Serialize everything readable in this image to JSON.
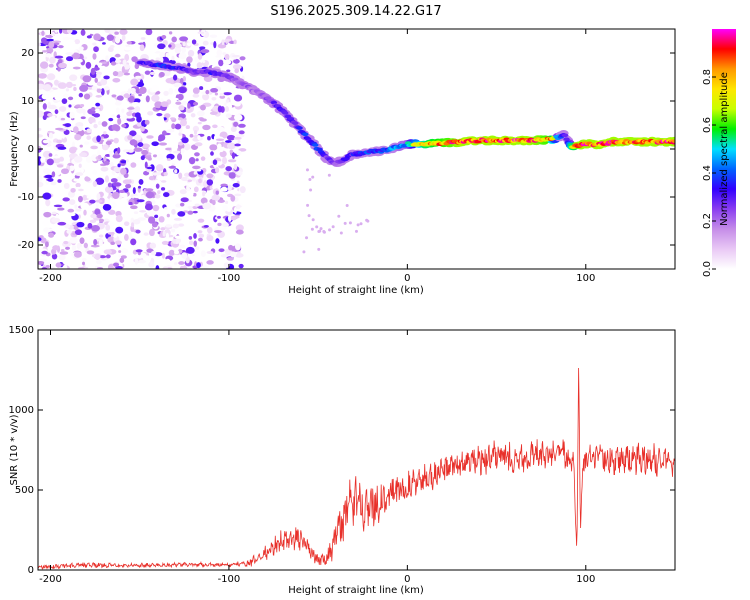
{
  "title": "S196.2025.309.14.22.G17",
  "chart_data": [
    {
      "type": "heatmap",
      "title": "S196.2025.309.14.22.G17",
      "xlabel": "Height of straight line (km)",
      "ylabel": "Frequency (Hz)",
      "xlim": [
        -207,
        150
      ],
      "ylim": [
        -25,
        25
      ],
      "x_ticks": [
        -200,
        -100,
        0,
        100
      ],
      "y_ticks": [
        20,
        10,
        0,
        -10,
        -20
      ],
      "x_tick_labels": [
        "-200",
        "-100",
        "0",
        "100"
      ],
      "y_tick_labels": [
        "20",
        "10",
        "0",
        "-10",
        "-20"
      ],
      "colorbar": {
        "label": "Normalized spectral amplitude",
        "range": [
          0,
          1
        ],
        "ticks": [
          0.0,
          0.2,
          0.4,
          0.6,
          0.8
        ],
        "tick_labels": [
          "0.0",
          "0.2",
          "0.4",
          "0.6",
          "0.8"
        ],
        "colors": [
          "#ffffff",
          "#e9c8f5",
          "#c58de8",
          "#8a3ef0",
          "#3200ff",
          "#0064ff",
          "#00e0ff",
          "#00f000",
          "#c8ff00",
          "#ffe600",
          "#ff9800",
          "#ff0000",
          "#ff00ff"
        ]
      },
      "ridge": {
        "x": [
          -150,
          -140,
          -130,
          -120,
          -110,
          -100,
          -95,
          -90,
          -85,
          -80,
          -75,
          -70,
          -65,
          -60,
          -55,
          -50,
          -45,
          -40,
          -35,
          -30,
          -25,
          -20,
          -15,
          -10,
          -5,
          0,
          5,
          10,
          20,
          30,
          40,
          50,
          60,
          70,
          80,
          85,
          88,
          90,
          92,
          95,
          100,
          105,
          110,
          115,
          120,
          130,
          140,
          150
        ],
        "y": [
          18,
          17.5,
          17,
          16,
          16,
          15,
          14,
          13,
          12,
          11,
          9.5,
          8,
          6,
          4,
          2,
          0,
          -2,
          -3,
          -2,
          -1,
          -1,
          -0.5,
          -0.5,
          0,
          0.5,
          1,
          1,
          1,
          1.2,
          1.5,
          1.8,
          1.8,
          1.8,
          1.8,
          2,
          2.5,
          3,
          1.5,
          0.5,
          0.8,
          1,
          1,
          1,
          1.5,
          1.5,
          1.5,
          1.5,
          1.5
        ],
        "amplitude": [
          0.3,
          0.4,
          0.35,
          0.3,
          0.35,
          0.3,
          0.2,
          0.25,
          0.2,
          0.25,
          0.3,
          0.35,
          0.3,
          0.35,
          0.4,
          0.4,
          0.3,
          0.25,
          0.35,
          0.35,
          0.4,
          0.4,
          0.4,
          0.45,
          0.5,
          0.5,
          0.75,
          0.85,
          0.9,
          0.95,
          0.95,
          0.95,
          0.95,
          0.95,
          0.9,
          0.5,
          0.3,
          0.4,
          0.8,
          0.95,
          0.95,
          0.95,
          0.95,
          0.95,
          0.95,
          0.95,
          0.95,
          0.95
        ]
      }
    },
    {
      "type": "line",
      "xlabel": "Height of straight line (km)",
      "ylabel": "SNR (10 * v/v)",
      "xlim": [
        -207,
        150
      ],
      "ylim": [
        0,
        1500
      ],
      "x_ticks": [
        -200,
        -100,
        0,
        100
      ],
      "y_ticks": [
        0,
        500,
        1000,
        1500
      ],
      "x_tick_labels": [
        "-200",
        "-100",
        "0",
        "100"
      ],
      "y_tick_labels": [
        "0",
        "500",
        "1000",
        "1500"
      ],
      "color": "#e8302a",
      "series": [
        {
          "name": "SNR",
          "x": [
            -207,
            -195,
            -180,
            -160,
            -140,
            -120,
            -100,
            -90,
            -85,
            -80,
            -75,
            -70,
            -60,
            -55,
            -50,
            -45,
            -40,
            -35,
            -30,
            -25,
            -20,
            -15,
            -10,
            -5,
            0,
            5,
            10,
            20,
            30,
            40,
            50,
            60,
            70,
            80,
            90,
            93,
            95,
            96,
            97,
            98,
            100,
            110,
            120,
            130,
            140,
            150
          ],
          "y": [
            20,
            25,
            30,
            30,
            30,
            35,
            30,
            40,
            60,
            100,
            140,
            180,
            200,
            130,
            60,
            80,
            200,
            350,
            420,
            400,
            400,
            440,
            470,
            500,
            510,
            550,
            570,
            620,
            660,
            690,
            700,
            700,
            710,
            700,
            720,
            700,
            100,
            1300,
            200,
            650,
            680,
            690,
            700,
            690,
            680,
            690
          ],
          "osc_amp": [
            10,
            12,
            12,
            10,
            10,
            10,
            10,
            15,
            30,
            40,
            50,
            60,
            60,
            40,
            30,
            50,
            100,
            150,
            130,
            120,
            110,
            110,
            100,
            90,
            80,
            75,
            70,
            70,
            70,
            75,
            80,
            80,
            80,
            80,
            80,
            60,
            20,
            20,
            20,
            80,
            80,
            80,
            80,
            80,
            80,
            80
          ]
        }
      ]
    }
  ]
}
